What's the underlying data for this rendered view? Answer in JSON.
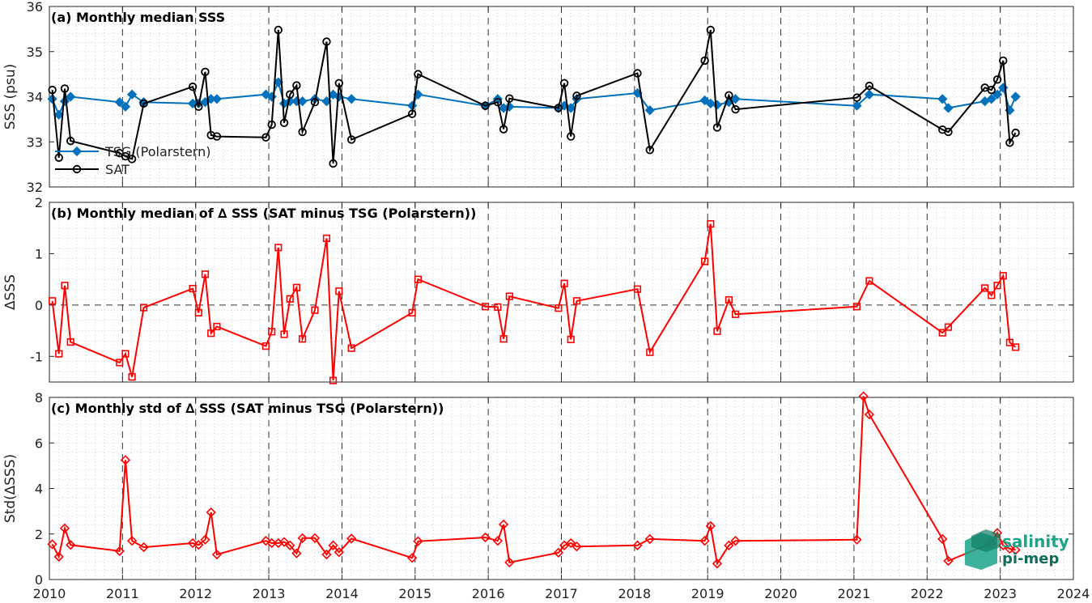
{
  "x_ticks": [
    "2010",
    "2011",
    "2012",
    "2013",
    "2014",
    "2015",
    "2016",
    "2017",
    "2018",
    "2019",
    "2020",
    "2021",
    "2022",
    "2023",
    "2024"
  ],
  "logo": {
    "line1": "salinity",
    "line2": "pi-mep",
    "color": "#1aa58a"
  },
  "colors": {
    "tsg": "#0072BD",
    "sat": "#000000",
    "delta": "#ff0000"
  },
  "chart_data": [
    {
      "type": "line",
      "title": "(a) Monthly median SSS",
      "ylabel": "SSS (psu)",
      "xlim": [
        2010,
        2024
      ],
      "ylim": [
        32,
        36
      ],
      "yticks": [
        32,
        33,
        34,
        35,
        36
      ],
      "grid": true,
      "legend_position": "lower-left",
      "series": [
        {
          "name": "TSG (Polarstern)",
          "marker": "diamond",
          "x": [
            2010.04,
            2010.13,
            2010.21,
            2010.29,
            2010.96,
            2011.04,
            2011.13,
            2011.29,
            2011.96,
            2012.04,
            2012.13,
            2012.21,
            2012.29,
            2012.96,
            2013.04,
            2013.13,
            2013.21,
            2013.29,
            2013.38,
            2013.46,
            2013.63,
            2013.79,
            2013.88,
            2013.96,
            2014.13,
            2014.96,
            2015.04,
            2015.96,
            2016.13,
            2016.21,
            2016.29,
            2016.96,
            2017.04,
            2017.13,
            2017.21,
            2018.04,
            2018.21,
            2018.96,
            2019.04,
            2019.13,
            2019.29,
            2019.38,
            2021.04,
            2021.21,
            2022.21,
            2022.29,
            2022.79,
            2022.88,
            2022.96,
            2023.04,
            2023.13,
            2023.21
          ],
          "y": [
            33.95,
            33.6,
            33.9,
            34.0,
            33.88,
            33.78,
            34.05,
            33.88,
            33.85,
            33.85,
            33.88,
            33.95,
            33.95,
            34.05,
            34.0,
            34.32,
            33.85,
            33.9,
            33.9,
            33.9,
            33.95,
            33.9,
            34.05,
            34.0,
            33.95,
            33.8,
            34.05,
            33.8,
            33.95,
            33.75,
            33.78,
            33.75,
            33.8,
            33.75,
            33.95,
            34.08,
            33.7,
            33.92,
            33.85,
            33.82,
            33.88,
            33.95,
            33.8,
            34.05,
            33.95,
            33.75,
            33.9,
            33.95,
            34.05,
            34.2,
            33.7,
            34.0
          ]
        },
        {
          "name": "SAT",
          "marker": "circle",
          "x": [
            2010.04,
            2010.13,
            2010.21,
            2010.29,
            2010.96,
            2011.04,
            2011.13,
            2011.29,
            2011.96,
            2012.04,
            2012.13,
            2012.21,
            2012.29,
            2012.96,
            2013.04,
            2013.13,
            2013.21,
            2013.29,
            2013.38,
            2013.46,
            2013.63,
            2013.79,
            2013.88,
            2013.96,
            2014.13,
            2014.96,
            2015.04,
            2015.96,
            2016.13,
            2016.21,
            2016.29,
            2016.96,
            2017.04,
            2017.13,
            2017.21,
            2018.04,
            2018.21,
            2018.96,
            2019.04,
            2019.13,
            2019.29,
            2019.38,
            2021.04,
            2021.21,
            2022.21,
            2022.29,
            2022.79,
            2022.88,
            2022.96,
            2023.04,
            2023.13,
            2023.21
          ],
          "y": [
            34.15,
            32.65,
            34.18,
            33.02,
            32.75,
            32.68,
            32.62,
            33.85,
            34.22,
            33.78,
            34.55,
            33.15,
            33.12,
            33.1,
            33.38,
            35.48,
            33.42,
            34.05,
            34.25,
            33.22,
            33.88,
            35.22,
            32.52,
            34.3,
            33.05,
            33.62,
            34.5,
            33.8,
            33.88,
            33.28,
            33.96,
            33.75,
            34.3,
            33.12,
            34.02,
            34.52,
            32.82,
            34.8,
            35.48,
            33.32,
            34.03,
            33.72,
            33.98,
            34.24,
            33.27,
            33.22,
            34.2,
            34.15,
            34.38,
            34.8,
            32.98,
            33.2
          ]
        }
      ]
    },
    {
      "type": "line",
      "title": "(b) Monthly median of ∆ SSS (SAT minus TSG (Polarstern))",
      "ylabel": "∆SSS",
      "xlim": [
        2010,
        2024
      ],
      "ylim": [
        -1.5,
        2
      ],
      "yticks": [
        -1,
        0,
        1,
        2
      ],
      "grid": true,
      "series": [
        {
          "name": "",
          "marker": "square",
          "x": [
            2010.04,
            2010.13,
            2010.21,
            2010.29,
            2010.96,
            2011.04,
            2011.13,
            2011.29,
            2011.96,
            2012.04,
            2012.13,
            2012.21,
            2012.29,
            2012.96,
            2013.04,
            2013.13,
            2013.21,
            2013.29,
            2013.38,
            2013.46,
            2013.63,
            2013.79,
            2013.88,
            2013.96,
            2014.13,
            2014.96,
            2015.04,
            2015.96,
            2016.13,
            2016.21,
            2016.29,
            2016.96,
            2017.04,
            2017.13,
            2017.21,
            2018.04,
            2018.21,
            2018.96,
            2019.04,
            2019.13,
            2019.29,
            2019.38,
            2021.04,
            2021.21,
            2022.21,
            2022.29,
            2022.79,
            2022.88,
            2022.96,
            2023.04,
            2023.13,
            2023.21
          ],
          "y": [
            0.08,
            -0.95,
            0.38,
            -0.72,
            -1.12,
            -0.95,
            -1.4,
            -0.05,
            0.32,
            -0.15,
            0.6,
            -0.55,
            -0.42,
            -0.8,
            -0.52,
            1.12,
            -0.57,
            0.12,
            0.34,
            -0.66,
            -0.1,
            1.3,
            -1.47,
            0.27,
            -0.84,
            -0.15,
            0.5,
            -0.03,
            -0.04,
            -0.66,
            0.17,
            -0.06,
            0.42,
            -0.67,
            0.08,
            0.31,
            -0.92,
            0.85,
            1.58,
            -0.51,
            0.1,
            -0.18,
            -0.03,
            0.47,
            -0.54,
            -0.43,
            0.33,
            0.19,
            0.38,
            0.57,
            -0.73,
            -0.82
          ]
        }
      ]
    },
    {
      "type": "line",
      "title": "(c) Monthly std of ∆ SSS (SAT minus TSG (Polarstern))",
      "ylabel": "Std(∆SSS)",
      "xlim": [
        2010,
        2024
      ],
      "ylim": [
        0,
        8
      ],
      "yticks": [
        0,
        2,
        4,
        6,
        8
      ],
      "grid": true,
      "series": [
        {
          "name": "",
          "marker": "diamond",
          "x": [
            2010.04,
            2010.13,
            2010.21,
            2010.29,
            2010.96,
            2011.04,
            2011.13,
            2011.29,
            2011.96,
            2012.04,
            2012.13,
            2012.21,
            2012.29,
            2012.96,
            2013.04,
            2013.13,
            2013.21,
            2013.29,
            2013.38,
            2013.46,
            2013.63,
            2013.79,
            2013.88,
            2013.96,
            2014.13,
            2014.96,
            2015.04,
            2015.96,
            2016.13,
            2016.21,
            2016.29,
            2016.96,
            2017.04,
            2017.13,
            2017.21,
            2018.04,
            2018.21,
            2018.96,
            2019.04,
            2019.13,
            2019.29,
            2019.38,
            2021.04,
            2021.13,
            2021.21,
            2022.21,
            2022.29,
            2022.88,
            2022.96,
            2023.04,
            2023.13,
            2023.21
          ],
          "y": [
            1.55,
            1.0,
            2.25,
            1.52,
            1.25,
            5.25,
            1.7,
            1.42,
            1.6,
            1.52,
            1.75,
            2.95,
            1.1,
            1.7,
            1.6,
            1.6,
            1.65,
            1.5,
            1.15,
            1.82,
            1.82,
            1.1,
            1.5,
            1.2,
            1.8,
            0.95,
            1.68,
            1.85,
            1.7,
            2.42,
            0.75,
            1.18,
            1.5,
            1.6,
            1.45,
            1.5,
            1.78,
            1.7,
            2.35,
            0.7,
            1.5,
            1.7,
            1.75,
            8.05,
            7.25,
            1.78,
            0.82,
            1.6,
            2.05,
            1.5,
            1.35,
            1.3
          ]
        }
      ]
    }
  ]
}
